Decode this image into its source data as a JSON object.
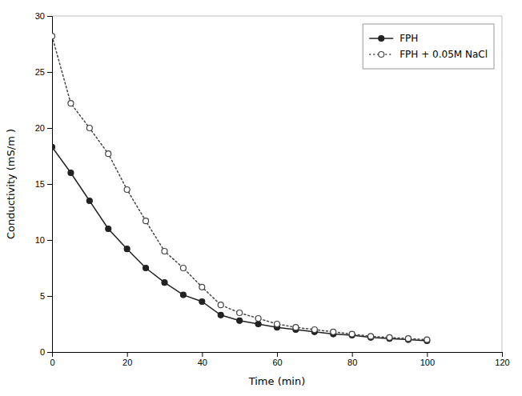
{
  "chart_data": {
    "type": "line",
    "x": [
      0,
      5,
      10,
      15,
      20,
      25,
      30,
      35,
      40,
      45,
      50,
      55,
      60,
      65,
      70,
      75,
      80,
      85,
      90,
      95,
      100
    ],
    "series": [
      {
        "name": "FPH",
        "color": "#222222",
        "marker": "circle",
        "line_style": "solid",
        "values": [
          18.3,
          16.0,
          13.5,
          11.0,
          9.2,
          7.5,
          6.2,
          5.1,
          4.5,
          3.3,
          2.8,
          2.5,
          2.2,
          2.0,
          1.8,
          1.6,
          1.5,
          1.3,
          1.2,
          1.1,
          1.0
        ]
      },
      {
        "name": "FPH + 0.05M NaCl",
        "color": "#444444",
        "marker": "circle-open",
        "line_style": "dotted",
        "values": [
          28.2,
          22.2,
          20.0,
          17.7,
          14.5,
          11.7,
          9.0,
          7.5,
          5.8,
          4.2,
          3.5,
          3.0,
          2.5,
          2.2,
          2.0,
          1.8,
          1.6,
          1.4,
          1.3,
          1.2,
          1.1
        ]
      }
    ],
    "xlabel": "Time (min)",
    "ylabel": "Conductivity (mS/m )",
    "xlim": [
      0,
      120
    ],
    "ylim": [
      0,
      30
    ],
    "xticks": [
      0,
      20,
      40,
      60,
      80,
      100,
      120
    ],
    "yticks": [
      0,
      5,
      10,
      15,
      20,
      25,
      30
    ],
    "grid": false,
    "legend": "upper right"
  }
}
